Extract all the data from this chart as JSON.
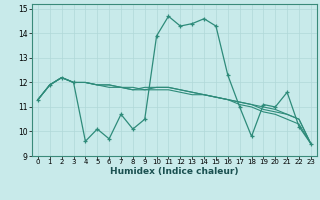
{
  "title": "",
  "xlabel": "Humidex (Indice chaleur)",
  "ylabel": "",
  "background_color": "#c8eaea",
  "grid_color": "#b0d8d8",
  "line_color": "#2e8b7a",
  "xlim": [
    -0.5,
    23.5
  ],
  "ylim": [
    9,
    15.2
  ],
  "yticks": [
    9,
    10,
    11,
    12,
    13,
    14,
    15
  ],
  "xticks": [
    0,
    1,
    2,
    3,
    4,
    5,
    6,
    7,
    8,
    9,
    10,
    11,
    12,
    13,
    14,
    15,
    16,
    17,
    18,
    19,
    20,
    21,
    22,
    23
  ],
  "series": [
    [
      11.3,
      11.9,
      12.2,
      12.0,
      9.6,
      10.1,
      9.7,
      10.7,
      10.1,
      10.5,
      13.9,
      14.7,
      14.3,
      14.4,
      14.6,
      14.3,
      12.3,
      11.0,
      9.8,
      11.1,
      11.0,
      11.6,
      10.2,
      9.5
    ],
    [
      11.3,
      11.9,
      12.2,
      12.0,
      12.0,
      11.9,
      11.8,
      11.8,
      11.7,
      11.8,
      11.8,
      11.8,
      11.7,
      11.6,
      11.5,
      11.4,
      11.3,
      11.2,
      11.1,
      11.0,
      10.9,
      10.7,
      10.5,
      9.5
    ],
    [
      11.3,
      11.9,
      12.2,
      12.0,
      12.0,
      11.9,
      11.9,
      11.8,
      11.8,
      11.7,
      11.8,
      11.8,
      11.7,
      11.6,
      11.5,
      11.4,
      11.3,
      11.2,
      11.1,
      10.9,
      10.8,
      10.7,
      10.5,
      9.5
    ],
    [
      11.3,
      11.9,
      12.2,
      12.0,
      12.0,
      11.9,
      11.9,
      11.8,
      11.7,
      11.7,
      11.7,
      11.7,
      11.6,
      11.5,
      11.5,
      11.4,
      11.3,
      11.1,
      11.0,
      10.8,
      10.7,
      10.5,
      10.3,
      9.5
    ]
  ]
}
